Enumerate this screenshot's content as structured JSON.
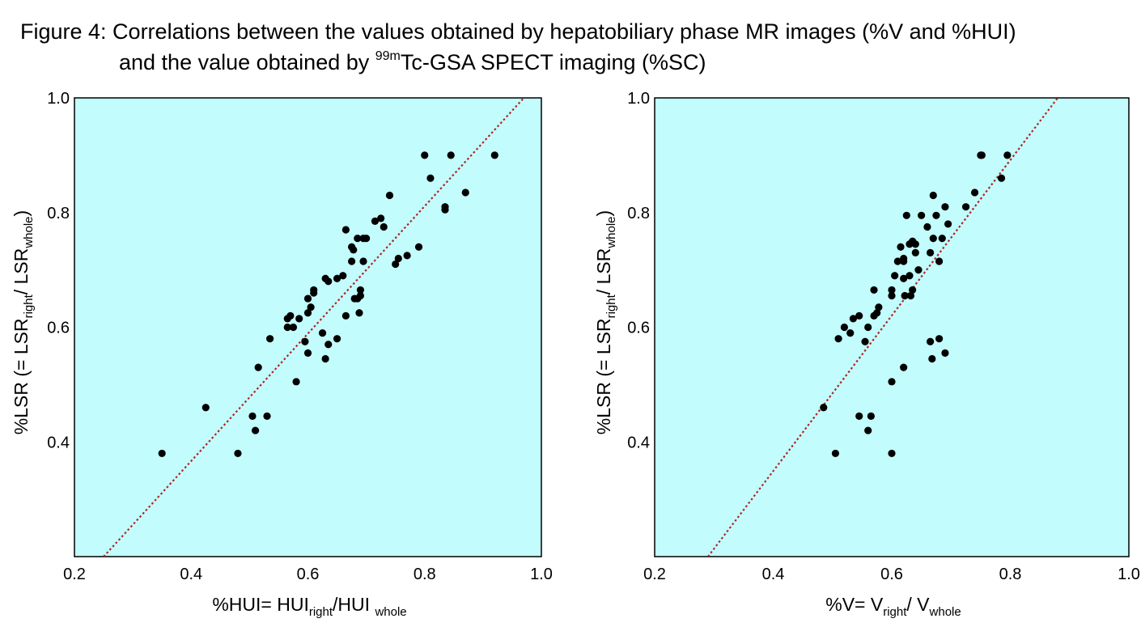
{
  "figure": {
    "title_line1": "Figure 4: Correlations between the values obtained by hepatobiliary phase MR images (%V and %HUI)",
    "title_line2_pre": "and the value obtained by ",
    "title_line2_sup": "99m",
    "title_line2_post": "Tc-GSA SPECT imaging (%SC)",
    "plot_bg_color": "#C2FCFC",
    "point_color": "#000000",
    "fit_line_color": "#B22222"
  },
  "chart_data": [
    {
      "type": "scatter",
      "title": "",
      "xlabel": {
        "main": "%HUI= HUI",
        "sub1": "right",
        "mid": "/HUI ",
        "sub2": "whole"
      },
      "ylabel": {
        "main": "%LSR (= LSR",
        "sub1": "right",
        "mid": "/ LSR",
        "sub2": "whole",
        "end": ")"
      },
      "xlim": [
        0.2,
        1.0
      ],
      "ylim": [
        0.2,
        1.0
      ],
      "x_ticks": [
        "0.2",
        "0.4",
        "0.6",
        "0.8",
        "1.0"
      ],
      "y_ticks": [
        "0.4",
        "0.6",
        "0.8",
        "1.0"
      ],
      "grid": false,
      "fit_line": [
        [
          0.25,
          0.2
        ],
        [
          0.97,
          1.0
        ]
      ],
      "points": [
        [
          0.35,
          0.38
        ],
        [
          0.425,
          0.46
        ],
        [
          0.48,
          0.38
        ],
        [
          0.505,
          0.445
        ],
        [
          0.51,
          0.42
        ],
        [
          0.515,
          0.53
        ],
        [
          0.53,
          0.445
        ],
        [
          0.535,
          0.58
        ],
        [
          0.565,
          0.6
        ],
        [
          0.565,
          0.615
        ],
        [
          0.57,
          0.62
        ],
        [
          0.575,
          0.6
        ],
        [
          0.58,
          0.505
        ],
        [
          0.585,
          0.615
        ],
        [
          0.595,
          0.575
        ],
        [
          0.6,
          0.555
        ],
        [
          0.6,
          0.625
        ],
        [
          0.6,
          0.65
        ],
        [
          0.605,
          0.635
        ],
        [
          0.61,
          0.66
        ],
        [
          0.61,
          0.665
        ],
        [
          0.625,
          0.59
        ],
        [
          0.63,
          0.545
        ],
        [
          0.63,
          0.685
        ],
        [
          0.635,
          0.68
        ],
        [
          0.635,
          0.57
        ],
        [
          0.65,
          0.58
        ],
        [
          0.65,
          0.685
        ],
        [
          0.66,
          0.69
        ],
        [
          0.665,
          0.77
        ],
        [
          0.665,
          0.62
        ],
        [
          0.675,
          0.74
        ],
        [
          0.675,
          0.715
        ],
        [
          0.678,
          0.735
        ],
        [
          0.68,
          0.65
        ],
        [
          0.685,
          0.65
        ],
        [
          0.685,
          0.755
        ],
        [
          0.688,
          0.625
        ],
        [
          0.69,
          0.655
        ],
        [
          0.69,
          0.665
        ],
        [
          0.695,
          0.755
        ],
        [
          0.695,
          0.715
        ],
        [
          0.7,
          0.755
        ],
        [
          0.715,
          0.785
        ],
        [
          0.725,
          0.79
        ],
        [
          0.73,
          0.775
        ],
        [
          0.74,
          0.83
        ],
        [
          0.75,
          0.71
        ],
        [
          0.755,
          0.72
        ],
        [
          0.77,
          0.725
        ],
        [
          0.79,
          0.74
        ],
        [
          0.8,
          0.9
        ],
        [
          0.81,
          0.86
        ],
        [
          0.835,
          0.805
        ],
        [
          0.835,
          0.81
        ],
        [
          0.845,
          0.9
        ],
        [
          0.87,
          0.835
        ],
        [
          0.92,
          0.9
        ]
      ]
    },
    {
      "type": "scatter",
      "title": "",
      "xlabel": {
        "main": "%V= V",
        "sub1": "right",
        "mid": "/ V",
        "sub2": "whole"
      },
      "ylabel": {
        "main": "%LSR (= LSR",
        "sub1": "right",
        "mid": "/ LSR",
        "sub2": "whole",
        "end": ")"
      },
      "xlim": [
        0.2,
        1.0
      ],
      "ylim": [
        0.2,
        1.0
      ],
      "x_ticks": [
        "0.2",
        "0.4",
        "0.6",
        "0.8",
        "1.0"
      ],
      "y_ticks": [
        "0.4",
        "0.6",
        "0.8",
        "1.0"
      ],
      "grid": false,
      "fit_line": [
        [
          0.29,
          0.2
        ],
        [
          0.88,
          1.0
        ]
      ],
      "points": [
        [
          0.485,
          0.46
        ],
        [
          0.505,
          0.38
        ],
        [
          0.51,
          0.58
        ],
        [
          0.52,
          0.6
        ],
        [
          0.53,
          0.59
        ],
        [
          0.535,
          0.615
        ],
        [
          0.545,
          0.445
        ],
        [
          0.545,
          0.62
        ],
        [
          0.555,
          0.575
        ],
        [
          0.56,
          0.42
        ],
        [
          0.56,
          0.6
        ],
        [
          0.565,
          0.445
        ],
        [
          0.57,
          0.62
        ],
        [
          0.57,
          0.665
        ],
        [
          0.575,
          0.625
        ],
        [
          0.578,
          0.635
        ],
        [
          0.6,
          0.505
        ],
        [
          0.6,
          0.655
        ],
        [
          0.6,
          0.665
        ],
        [
          0.6,
          0.38
        ],
        [
          0.605,
          0.69
        ],
        [
          0.61,
          0.715
        ],
        [
          0.615,
          0.74
        ],
        [
          0.62,
          0.715
        ],
        [
          0.62,
          0.72
        ],
        [
          0.62,
          0.685
        ],
        [
          0.62,
          0.53
        ],
        [
          0.622,
          0.655
        ],
        [
          0.625,
          0.795
        ],
        [
          0.63,
          0.69
        ],
        [
          0.63,
          0.745
        ],
        [
          0.632,
          0.655
        ],
        [
          0.635,
          0.665
        ],
        [
          0.635,
          0.75
        ],
        [
          0.64,
          0.73
        ],
        [
          0.64,
          0.745
        ],
        [
          0.645,
          0.7
        ],
        [
          0.65,
          0.795
        ],
        [
          0.66,
          0.775
        ],
        [
          0.665,
          0.73
        ],
        [
          0.665,
          0.575
        ],
        [
          0.668,
          0.545
        ],
        [
          0.67,
          0.755
        ],
        [
          0.67,
          0.83
        ],
        [
          0.675,
          0.795
        ],
        [
          0.68,
          0.715
        ],
        [
          0.68,
          0.58
        ],
        [
          0.685,
          0.755
        ],
        [
          0.69,
          0.555
        ],
        [
          0.69,
          0.81
        ],
        [
          0.695,
          0.78
        ],
        [
          0.725,
          0.81
        ],
        [
          0.74,
          0.835
        ],
        [
          0.75,
          0.9
        ],
        [
          0.752,
          0.9
        ],
        [
          0.785,
          0.86
        ],
        [
          0.795,
          0.9
        ]
      ]
    }
  ]
}
